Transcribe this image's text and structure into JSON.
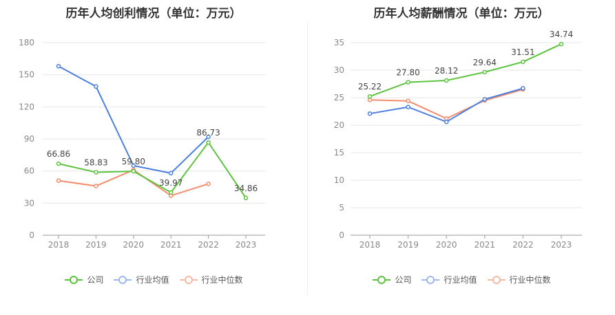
{
  "colors": {
    "company": "#5cc33c",
    "industry_avg": "#4a7fe0",
    "industry_median": "#f28c6b"
  },
  "chart_data": [
    {
      "type": "line",
      "title": "历年人均创利情况（单位：万元）",
      "categories": [
        "2018",
        "2019",
        "2020",
        "2021",
        "2022",
        "2023"
      ],
      "yticks": [
        "0",
        "30",
        "60",
        "90",
        "120",
        "150",
        "180"
      ],
      "ylim": [
        0,
        180
      ],
      "grid": true,
      "legend_position": "bottom",
      "series": [
        {
          "name": "公司",
          "key": "company",
          "values": [
            66.86,
            58.83,
            59.8,
            39.97,
            86.73,
            34.86
          ],
          "labels": [
            "66.86",
            "58.83",
            "59.80",
            "39.97",
            "86.73",
            "34.86"
          ]
        },
        {
          "name": "行业均值",
          "key": "industry_avg",
          "values": [
            158,
            139,
            65,
            58,
            92,
            null
          ]
        },
        {
          "name": "行业中位数",
          "key": "industry_median",
          "values": [
            51,
            46,
            61,
            37,
            48,
            null
          ]
        }
      ]
    },
    {
      "type": "line",
      "title": "历年人均薪酬情况（单位：万元）",
      "categories": [
        "2018",
        "2019",
        "2020",
        "2021",
        "2022",
        "2023"
      ],
      "yticks": [
        "0",
        "5",
        "10",
        "15",
        "20",
        "25",
        "30",
        "35"
      ],
      "ylim": [
        0,
        35
      ],
      "grid": true,
      "legend_position": "bottom",
      "series": [
        {
          "name": "公司",
          "key": "company",
          "values": [
            25.22,
            27.8,
            28.12,
            29.64,
            31.51,
            34.74
          ],
          "labels": [
            "25.22",
            "27.80",
            "28.12",
            "29.64",
            "31.51",
            "34.74"
          ]
        },
        {
          "name": "行业均值",
          "key": "industry_avg",
          "values": [
            22.1,
            23.3,
            20.6,
            24.7,
            26.7,
            null
          ]
        },
        {
          "name": "行业中位数",
          "key": "industry_median",
          "values": [
            24.6,
            24.4,
            21.2,
            24.5,
            26.5,
            null
          ]
        }
      ]
    }
  ]
}
